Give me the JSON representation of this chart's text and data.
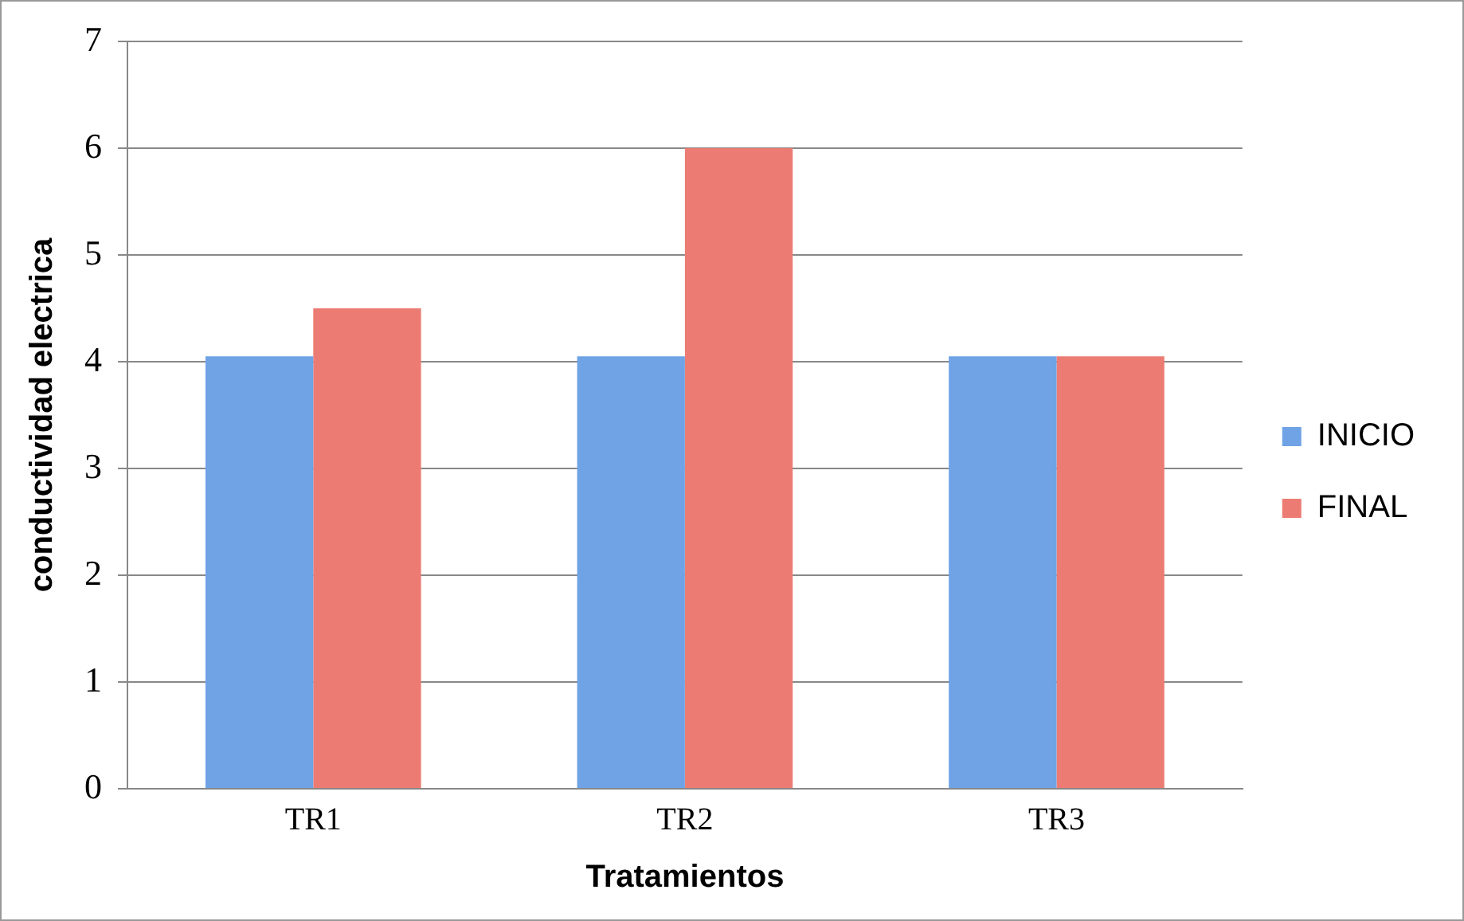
{
  "chart_data": {
    "type": "bar",
    "categories": [
      "TR1",
      "TR2",
      "TR3"
    ],
    "series": [
      {
        "name": "INICIO",
        "color": "#6fa3e6",
        "values": [
          4.05,
          4.05,
          4.05
        ]
      },
      {
        "name": "FINAL",
        "color": "#ec7c73",
        "values": [
          4.5,
          6.0,
          4.05
        ]
      }
    ],
    "xlabel": "Tratamientos",
    "ylabel": "conductividad electrica",
    "ylim": [
      0,
      7
    ],
    "yticks": [
      0,
      1,
      2,
      3,
      4,
      5,
      6,
      7
    ],
    "grid": "y",
    "legend": "right"
  }
}
